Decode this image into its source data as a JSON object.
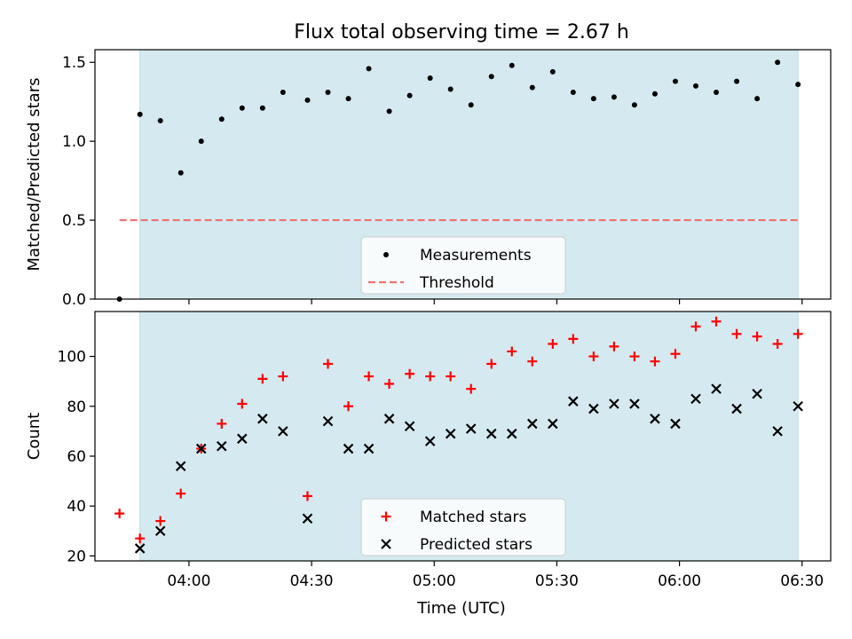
{
  "chart_data": {
    "title": "Flux total observing time = 2.67 h",
    "shaded_region": {
      "start": "03:48",
      "end": "06:29",
      "color": "#d4eaf0"
    },
    "xlabel": "Time (UTC)",
    "x_ticks": [
      "04:00",
      "04:30",
      "05:00",
      "05:30",
      "06:00",
      "06:30"
    ],
    "x_range": [
      "03:37",
      "06:37"
    ],
    "panels": [
      {
        "type": "scatter",
        "ylabel": "Matched/Predicted stars",
        "ylim": [
          0,
          1.58
        ],
        "y_ticks": [
          "0.0",
          "0.5",
          "1.0",
          "1.5"
        ],
        "legend_position": "lower center",
        "series": [
          {
            "name": "Measurements",
            "marker": "dot",
            "color": "#000000",
            "x": [
              "03:43",
              "03:48",
              "03:53",
              "03:58",
              "04:03",
              "04:08",
              "04:13",
              "04:18",
              "04:23",
              "04:29",
              "04:34",
              "04:39",
              "04:44",
              "04:49",
              "04:54",
              "04:59",
              "05:04",
              "05:09",
              "05:14",
              "05:19",
              "05:24",
              "05:29",
              "05:34",
              "05:39",
              "05:44",
              "05:49",
              "05:54",
              "05:59",
              "06:04",
              "06:09",
              "06:14",
              "06:19",
              "06:24",
              "06:29"
            ],
            "y": [
              0.0,
              1.17,
              1.13,
              0.8,
              1.0,
              1.14,
              1.21,
              1.21,
              1.31,
              1.26,
              1.31,
              1.27,
              1.46,
              1.19,
              1.29,
              1.4,
              1.33,
              1.23,
              1.41,
              1.48,
              1.34,
              1.44,
              1.31,
              1.27,
              1.28,
              1.23,
              1.3,
              1.38,
              1.35,
              1.31,
              1.38,
              1.27,
              1.5,
              1.36
            ]
          },
          {
            "name": "Threshold",
            "marker": "dashed-line",
            "color": "#f07070",
            "x": [
              "03:43",
              "06:29"
            ],
            "y": [
              0.5,
              0.5
            ]
          }
        ]
      },
      {
        "type": "scatter",
        "ylabel": "Count",
        "ylim": [
          18,
          118
        ],
        "y_ticks": [
          "20",
          "40",
          "60",
          "80",
          "100"
        ],
        "legend_position": "lower center",
        "series": [
          {
            "name": "Matched stars",
            "marker": "plus",
            "color": "#ff0000",
            "x": [
              "03:43",
              "03:48",
              "03:53",
              "03:58",
              "04:03",
              "04:08",
              "04:13",
              "04:18",
              "04:23",
              "04:29",
              "04:34",
              "04:39",
              "04:44",
              "04:49",
              "04:54",
              "04:59",
              "05:04",
              "05:09",
              "05:14",
              "05:19",
              "05:24",
              "05:29",
              "05:34",
              "05:39",
              "05:44",
              "05:49",
              "05:54",
              "05:59",
              "06:04",
              "06:09",
              "06:14",
              "06:19",
              "06:24",
              "06:29"
            ],
            "y": [
              37,
              27,
              34,
              45,
              63,
              73,
              81,
              91,
              92,
              44,
              97,
              80,
              92,
              89,
              93,
              92,
              92,
              87,
              97,
              102,
              98,
              105,
              107,
              100,
              104,
              100,
              98,
              101,
              112,
              114,
              109,
              108,
              105,
              109
            ]
          },
          {
            "name": "Predicted stars",
            "marker": "x",
            "color": "#000000",
            "x": [
              "03:48",
              "03:53",
              "03:58",
              "04:03",
              "04:08",
              "04:13",
              "04:18",
              "04:23",
              "04:29",
              "04:34",
              "04:39",
              "04:44",
              "04:49",
              "04:54",
              "04:59",
              "05:04",
              "05:09",
              "05:14",
              "05:19",
              "05:24",
              "05:29",
              "05:34",
              "05:39",
              "05:44",
              "05:49",
              "05:54",
              "05:59",
              "06:04",
              "06:09",
              "06:14",
              "06:19",
              "06:24",
              "06:29"
            ],
            "y": [
              23,
              30,
              56,
              63,
              64,
              67,
              75,
              70,
              35,
              74,
              63,
              63,
              75,
              72,
              66,
              69,
              71,
              69,
              69,
              73,
              73,
              82,
              79,
              81,
              81,
              75,
              73,
              83,
              87,
              79,
              85,
              70,
              80
            ]
          }
        ]
      }
    ]
  }
}
